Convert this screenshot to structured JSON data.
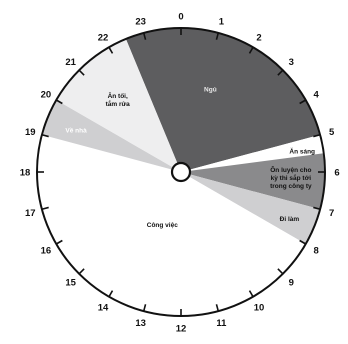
{
  "chart_data": {
    "type": "pie",
    "title": "",
    "unit": "hours",
    "hour_labels": [
      "0",
      "1",
      "2",
      "3",
      "4",
      "5",
      "6",
      "7",
      "8",
      "9",
      "10",
      "11",
      "12",
      "13",
      "14",
      "15",
      "16",
      "17",
      "18",
      "19",
      "20",
      "21",
      "22",
      "23"
    ],
    "segments": [
      {
        "id": "sleep",
        "label_lines": [
          "Ngủ"
        ],
        "start": 22.5,
        "end": 5.0,
        "hours": 6.5,
        "color": "#5d5d5f",
        "text_color": "#e8e8e8"
      },
      {
        "id": "breakfast",
        "label_lines": [
          "Ăn sáng"
        ],
        "start": 5.0,
        "end": 5.5,
        "hours": 0.5,
        "color": "#ffffff",
        "text_color": "#111111"
      },
      {
        "id": "practice",
        "label_lines": [
          "Ôn luyện cho",
          "kỳ thi sắp tới",
          "trong công ty"
        ],
        "start": 5.5,
        "end": 7.0,
        "hours": 1.5,
        "color": "#8a8a8c",
        "text_color": "#111111"
      },
      {
        "id": "commute",
        "label_lines": [
          "Đi làm"
        ],
        "start": 7.0,
        "end": 8.0,
        "hours": 1.0,
        "color": "#cfcfd1",
        "text_color": "#111111"
      },
      {
        "id": "work",
        "label_lines": [
          "Công việc"
        ],
        "start": 8.0,
        "end": 19.0,
        "hours": 11.0,
        "color": "#ffffff",
        "text_color": "#111111"
      },
      {
        "id": "go-home",
        "label_lines": [
          "Về nhà"
        ],
        "start": 19.0,
        "end": 20.0,
        "hours": 1.0,
        "color": "#cfcfd1",
        "text_color": "#ffffff"
      },
      {
        "id": "dinner",
        "label_lines": [
          "Ăn tối,",
          "tắm rửa"
        ],
        "start": 20.0,
        "end": 22.5,
        "hours": 2.5,
        "color": "#eeeeef",
        "text_color": "#111111"
      }
    ]
  }
}
